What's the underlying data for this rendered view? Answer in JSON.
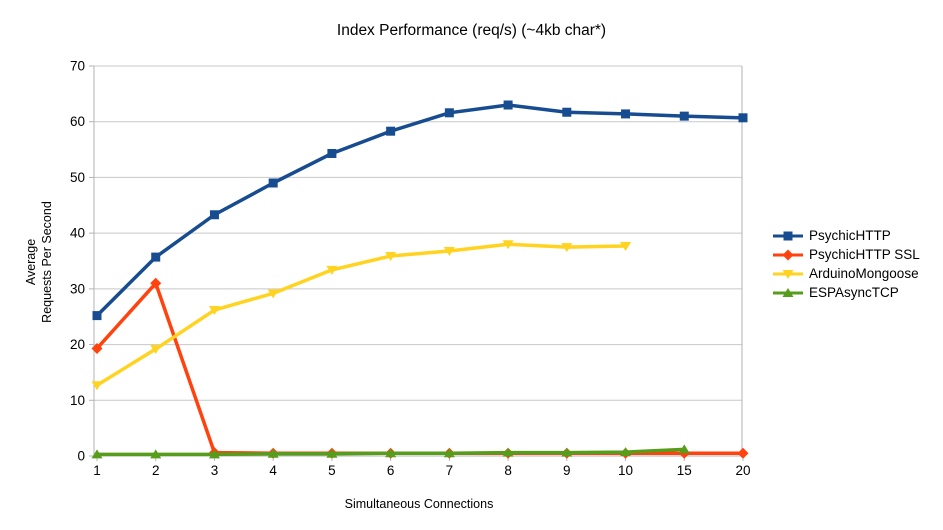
{
  "chart": {
    "ylabel_line1": "Average",
    "ylabel_line2": "Requests Per Second"
  },
  "chart_data": {
    "type": "line",
    "title": "Index Performance (req/s) (~4kb char*)",
    "xlabel": "Simultaneous Connections",
    "ylabel": "Average Requests Per Second",
    "categories": [
      "1",
      "2",
      "3",
      "4",
      "5",
      "6",
      "7",
      "8",
      "9",
      "10",
      "15",
      "20"
    ],
    "ylim": [
      0,
      70
    ],
    "yticks": [
      0,
      10,
      20,
      30,
      40,
      50,
      60,
      70
    ],
    "grid": true,
    "legend_position": "right",
    "series": [
      {
        "name": "PsychicHTTP",
        "color": "#174C90",
        "marker": "square",
        "values": [
          25.2,
          35.7,
          43.3,
          49.0,
          54.3,
          58.3,
          61.6,
          63.0,
          61.7,
          61.4,
          61.0,
          60.7
        ]
      },
      {
        "name": "PsychicHTTP SSL",
        "color": "#FF420E",
        "marker": "diamond",
        "values": [
          19.3,
          31.0,
          0.6,
          0.5,
          0.5,
          0.5,
          0.5,
          0.5,
          0.5,
          0.5,
          0.5,
          0.5
        ]
      },
      {
        "name": "ArduinoMongoose",
        "color": "#FFD320",
        "marker": "triangle-down",
        "values": [
          12.7,
          19.2,
          26.2,
          29.2,
          33.4,
          35.9,
          36.8,
          38.0,
          37.5,
          37.7,
          null,
          null
        ]
      },
      {
        "name": "ESPAsyncTCP",
        "color": "#579D1C",
        "marker": "triangle-up",
        "values": [
          0.3,
          0.3,
          0.3,
          0.4,
          0.4,
          0.5,
          0.5,
          0.6,
          0.6,
          0.7,
          1.2,
          null
        ]
      }
    ],
    "axis_color": "#B3B3B3",
    "grid_color": "#C8C8C8",
    "text_color": "#000000"
  }
}
